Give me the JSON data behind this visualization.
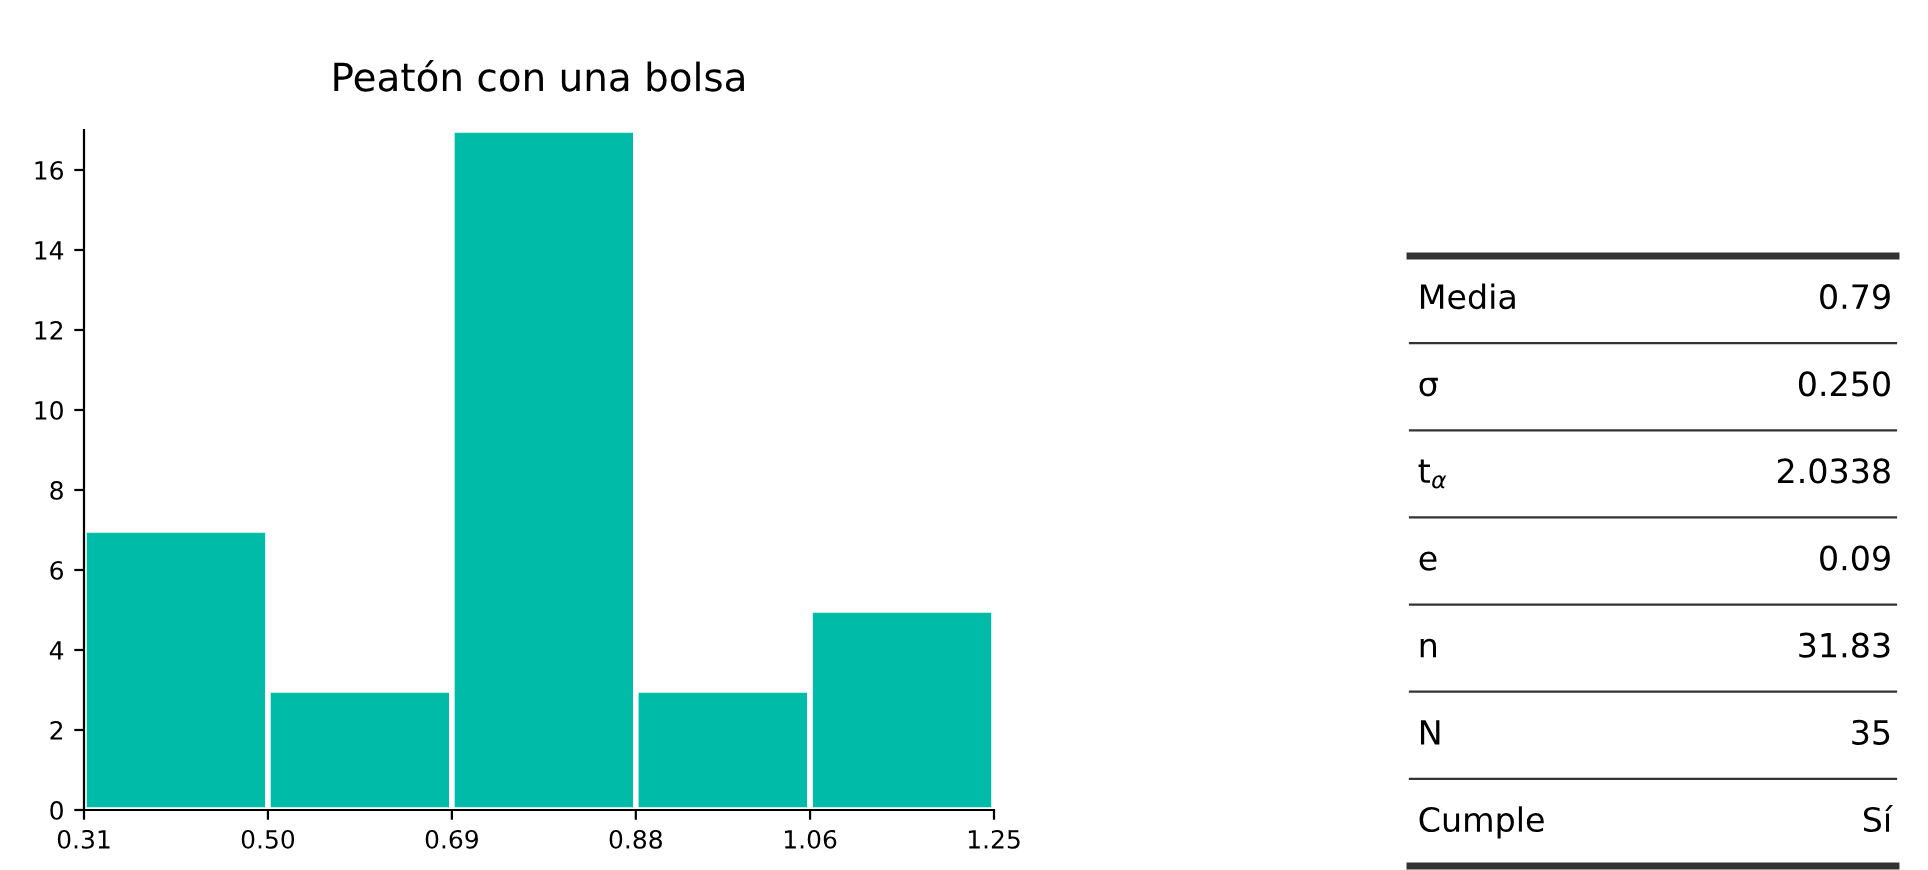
{
  "chart_data": [
    {
      "type": "histogram",
      "title": "Peatón con una bolsa",
      "bins": [
        0.31,
        0.5,
        0.69,
        0.88,
        1.06,
        1.25
      ],
      "values": [
        7,
        3,
        17,
        3,
        5
      ],
      "color": "#00bba7",
      "xlim": [
        0.31,
        1.25
      ],
      "xticks": [
        {
          "value": 0.31,
          "label": "0.31"
        },
        {
          "value": 0.5,
          "label": "0.50"
        },
        {
          "value": 0.69,
          "label": "0.69"
        },
        {
          "value": 0.88,
          "label": "0.88"
        },
        {
          "value": 1.06,
          "label": "1.06"
        },
        {
          "value": 1.25,
          "label": "1.25"
        }
      ],
      "ylim": [
        0,
        17
      ],
      "yticks": [
        0,
        2,
        4,
        6,
        8,
        10,
        12,
        14,
        16
      ],
      "grid": false,
      "legend": false
    },
    {
      "type": "other",
      "annotations": [
        "Media",
        "0.79",
        "σ",
        "0.250",
        "t$_{α}$",
        "2.0338",
        "e",
        "0.09",
        "n",
        "31.83",
        "N",
        "35",
        "Cumple",
        "Sí"
      ]
    }
  ]
}
